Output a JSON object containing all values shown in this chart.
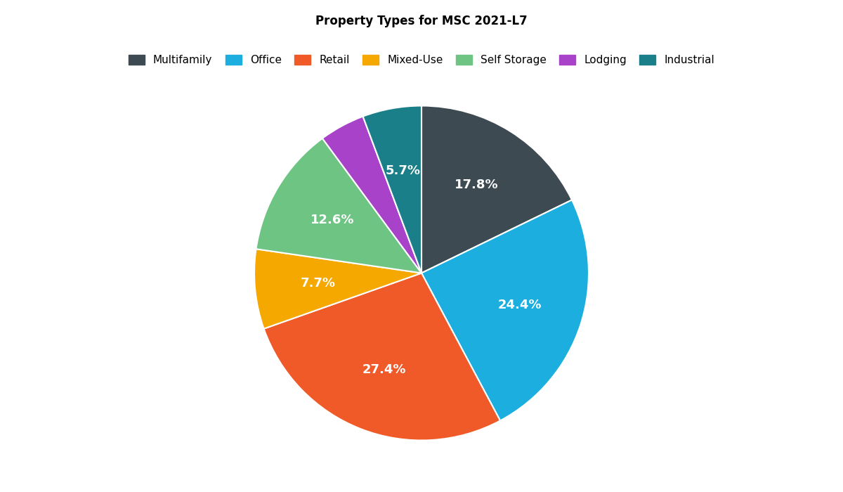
{
  "title": "Property Types for MSC 2021-L7",
  "labels": [
    "Multifamily",
    "Office",
    "Retail",
    "Mixed-Use",
    "Self Storage",
    "Lodging",
    "Industrial"
  ],
  "values": [
    17.8,
    24.4,
    27.4,
    7.7,
    12.6,
    4.4,
    5.7
  ],
  "colors": [
    "#3d4a52",
    "#1caede",
    "#f05a28",
    "#f5a800",
    "#6ec483",
    "#a742c9",
    "#1b7f8a"
  ],
  "pct_labels": [
    "17.8%",
    "24.4%",
    "27.4%",
    "7.7%",
    "12.6%",
    "",
    "5.7%"
  ],
  "startangle": 90,
  "title_fontsize": 12,
  "label_fontsize": 13,
  "legend_fontsize": 11,
  "bg_color": "#ffffff"
}
